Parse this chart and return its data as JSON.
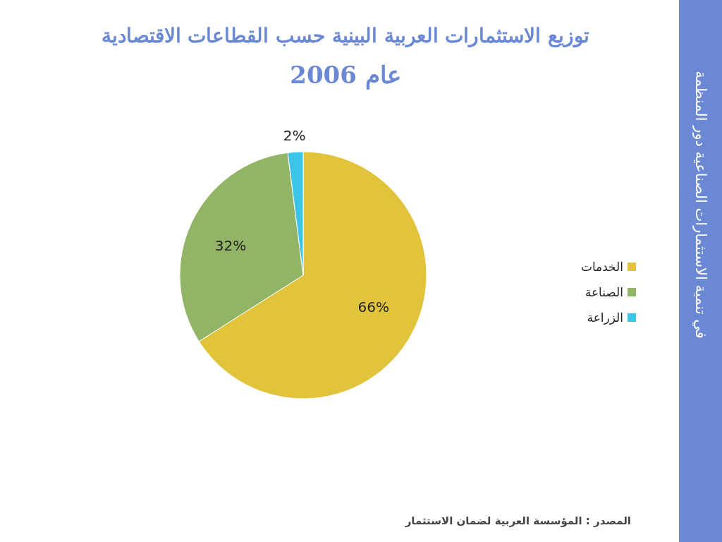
{
  "chart_data": {
    "type": "pie",
    "title": "توزيع الاستثمارات العربية البينية حسب القطاعات الاقتصادية",
    "subtitle": "عام 2006",
    "categories": [
      "الخدمات",
      "الصناعة",
      "الزراعة"
    ],
    "values": [
      66,
      32,
      2
    ],
    "value_labels": [
      "66%",
      "32%",
      "2%"
    ],
    "colors": [
      "#e2c43c",
      "#92b466",
      "#3cc4e6"
    ],
    "legend": "right",
    "annotations": [
      "المصدر : المؤسسة العربية لضمان الاستثمار",
      "في تنمية الاستثمارات الصناعية دور المنظمة"
    ]
  }
}
